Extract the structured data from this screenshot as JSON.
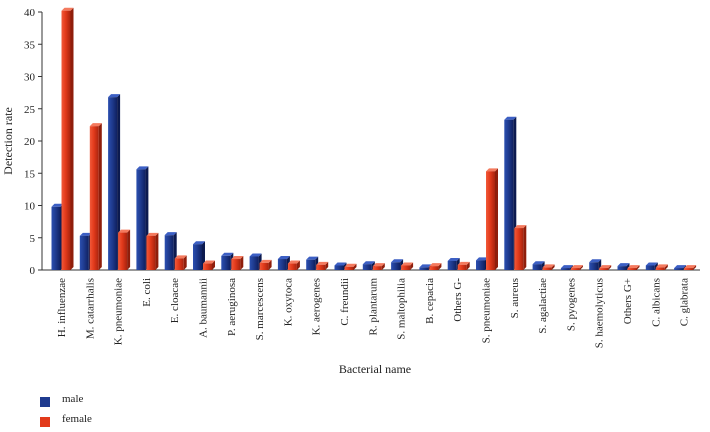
{
  "chart_data": {
    "type": "bar",
    "title": "",
    "xlabel": "Bacterial name",
    "ylabel": "Detection rate",
    "ylim": [
      0,
      40
    ],
    "yticks": [
      0,
      5,
      10,
      15,
      20,
      25,
      30,
      35,
      40
    ],
    "grid": false,
    "legend_position": "bottom-left",
    "categories": [
      "H. influenzae",
      "M. catarrhalis",
      "K. pneumoniae",
      "E. coli",
      "E. cloacae",
      "A. baumannii",
      "P. aeruginosa",
      "S. marcescens",
      "K. oxytoca",
      "K. aerogenes",
      "C. freundii",
      "R. plantarum",
      "S. maltophilia",
      "B. cepacia",
      "Others G-",
      "S. pneumoniae",
      "S. aureus",
      "S. agalactiae",
      "S. pyogenes",
      "S. haemolyticus",
      "Others G+",
      "C. albicans",
      "C. glabrata"
    ],
    "series": [
      {
        "name": "male",
        "color": "#1f3b8f",
        "values": [
          9.8,
          5.3,
          26.8,
          15.6,
          5.4,
          4.0,
          2.2,
          2.1,
          1.7,
          1.6,
          0.7,
          0.9,
          1.2,
          0.4,
          1.4,
          1.5,
          23.3,
          0.9,
          0.3,
          1.2,
          0.6,
          0.7,
          0.3
        ]
      },
      {
        "name": "female",
        "color": "#e23a1b",
        "values": [
          40.2,
          22.3,
          5.8,
          5.3,
          1.8,
          1.0,
          1.7,
          1.1,
          1.0,
          0.8,
          0.5,
          0.6,
          0.7,
          0.6,
          0.8,
          15.3,
          6.5,
          0.4,
          0.3,
          0.3,
          0.3,
          0.4,
          0.3
        ]
      }
    ]
  }
}
